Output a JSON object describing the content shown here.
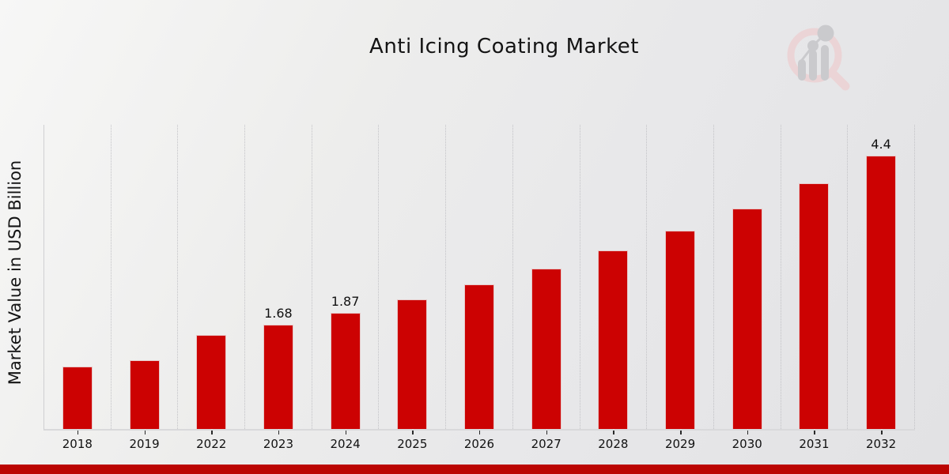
{
  "header": {
    "title": "Anti Icing Coating Market"
  },
  "chart_data": {
    "type": "bar",
    "title": "Anti Icing Coating Market",
    "xlabel": "",
    "ylabel": "Market Value in USD Billion",
    "categories": [
      "2018",
      "2019",
      "2022",
      "2023",
      "2024",
      "2025",
      "2026",
      "2027",
      "2028",
      "2029",
      "2030",
      "2031",
      "2032"
    ],
    "values": [
      1.0,
      1.1,
      1.51,
      1.68,
      1.87,
      2.08,
      2.32,
      2.58,
      2.87,
      3.19,
      3.55,
      3.95,
      4.4
    ],
    "data_labels": [
      "",
      "",
      "",
      "1.68",
      "1.87",
      "",
      "",
      "",
      "",
      "",
      "",
      "",
      "4.4"
    ],
    "ylim": [
      0,
      4.89
    ],
    "bar_color": "#cc0202",
    "grid": "vertical-dotted-gridlines",
    "legend": "none",
    "axis_line_color": "#cfcfd2",
    "tick_color": "#2a2a2a"
  },
  "watermark": {
    "name": "magnifier-bar-chart-logo",
    "ring_color": "#ecd3d5",
    "glyph_color": "#c7c7cb"
  },
  "footer": {
    "banner_color": "#bb0502"
  }
}
